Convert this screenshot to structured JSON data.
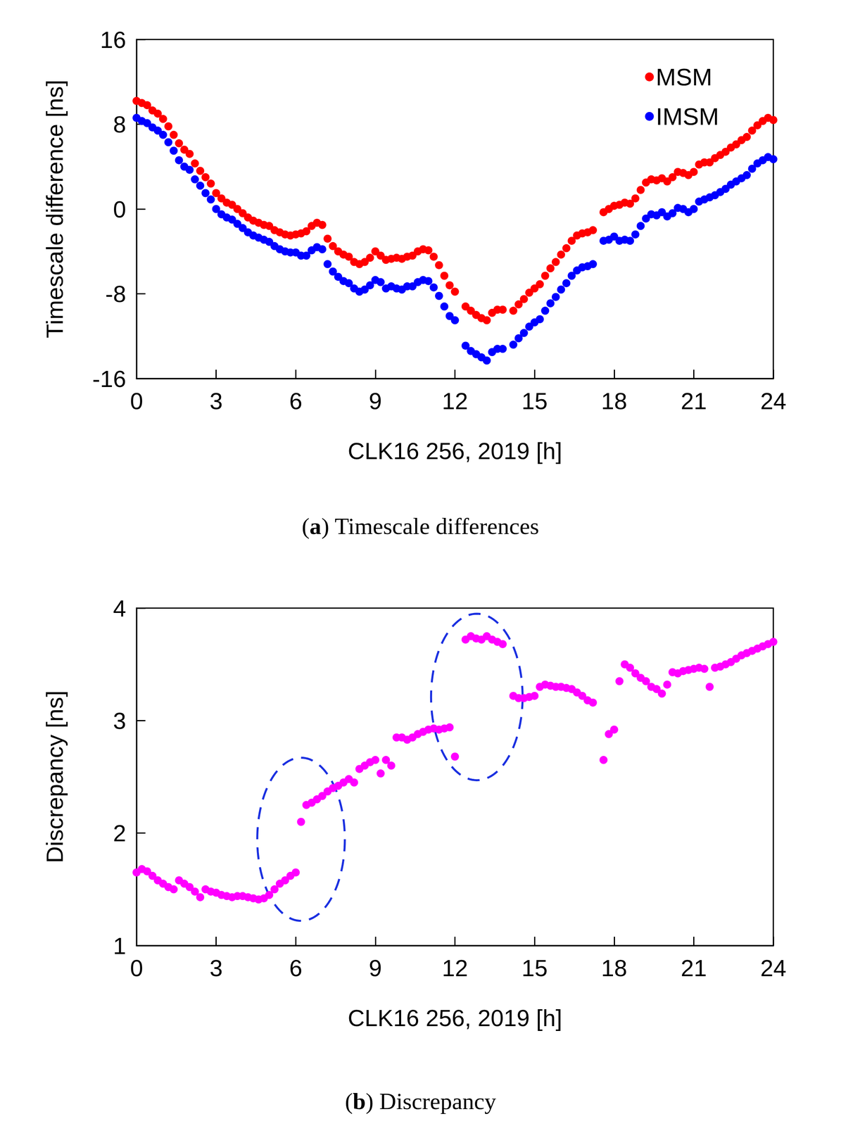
{
  "chart_data": [
    {
      "type": "scatter",
      "title": "(a) Timescale differences",
      "x_label": "CLK16 256, 2019 [h]",
      "y_label": "Timescale difference [ns]",
      "x": [
        0,
        0.2,
        0.4,
        0.6,
        0.8,
        1,
        1.2,
        1.4,
        1.6,
        1.8,
        2,
        2.2,
        2.4,
        2.6,
        2.8,
        3,
        3.2,
        3.4,
        3.6,
        3.8,
        4,
        4.2,
        4.4,
        4.6,
        4.8,
        5,
        5.2,
        5.4,
        5.6,
        5.8,
        6,
        6.2,
        6.4,
        6.6,
        6.8,
        7,
        7.2,
        7.4,
        7.6,
        7.8,
        8,
        8.2,
        8.4,
        8.6,
        8.8,
        9,
        9.2,
        9.4,
        9.6,
        9.8,
        10,
        10.2,
        10.4,
        10.6,
        10.8,
        11,
        11.2,
        11.4,
        11.6,
        11.8,
        12,
        12.4,
        12.6,
        12.8,
        13,
        13.2,
        13.4,
        13.6,
        13.8,
        14.2,
        14.4,
        14.6,
        14.8,
        15,
        15.2,
        15.4,
        15.6,
        15.8,
        16,
        16.2,
        16.4,
        16.6,
        16.8,
        17,
        17.2,
        17.6,
        17.8,
        18,
        18.2,
        18.4,
        18.6,
        18.8,
        19,
        19.2,
        19.4,
        19.6,
        19.8,
        20,
        20.2,
        20.4,
        20.6,
        20.8,
        21,
        21.2,
        21.4,
        21.6,
        21.8,
        22,
        22.2,
        22.4,
        22.6,
        22.8,
        23,
        23.2,
        23.4,
        23.6,
        23.8,
        24
      ],
      "series": [
        {
          "name": "MSM",
          "color": "#ff0000",
          "values": [
            10.2,
            10.0,
            9.8,
            9.3,
            9.0,
            8.5,
            7.8,
            7.0,
            6.2,
            5.6,
            5.2,
            4.3,
            3.6,
            3.0,
            2.4,
            1.5,
            1.0,
            0.6,
            0.4,
            0.0,
            -0.4,
            -0.8,
            -1.1,
            -1.3,
            -1.5,
            -1.6,
            -2.0,
            -2.2,
            -2.4,
            -2.5,
            -2.4,
            -2.3,
            -2.1,
            -1.6,
            -1.3,
            -1.5,
            -2.8,
            -3.5,
            -4.0,
            -4.3,
            -4.5,
            -5.0,
            -5.2,
            -5.0,
            -4.6,
            -4.0,
            -4.4,
            -4.8,
            -4.7,
            -4.6,
            -4.7,
            -4.5,
            -4.4,
            -4.0,
            -3.8,
            -3.9,
            -4.5,
            -5.3,
            -6.3,
            -7.2,
            -7.8,
            -9.2,
            -9.6,
            -10.0,
            -10.3,
            -10.5,
            -9.8,
            -9.5,
            -9.5,
            -9.6,
            -9.0,
            -8.5,
            -7.9,
            -7.5,
            -7.1,
            -6.3,
            -5.6,
            -5.0,
            -4.3,
            -3.7,
            -3.0,
            -2.5,
            -2.3,
            -2.2,
            -2.0,
            -0.3,
            0.0,
            0.3,
            0.4,
            0.6,
            0.5,
            1.0,
            1.8,
            2.5,
            2.8,
            2.7,
            2.9,
            2.6,
            3.0,
            3.5,
            3.4,
            3.2,
            3.5,
            4.2,
            4.4,
            4.4,
            4.8,
            5.1,
            5.4,
            5.8,
            6.1,
            6.5,
            6.8,
            7.4,
            7.9,
            8.3,
            8.6,
            8.4
          ]
        },
        {
          "name": "IMSM",
          "color": "#0000ff",
          "values": [
            8.6,
            8.3,
            8.1,
            7.7,
            7.4,
            7.0,
            6.3,
            5.5,
            4.6,
            4.0,
            3.7,
            2.8,
            2.2,
            1.5,
            0.9,
            0.0,
            -0.5,
            -0.8,
            -1.0,
            -1.4,
            -1.8,
            -2.2,
            -2.5,
            -2.7,
            -2.9,
            -3.1,
            -3.5,
            -3.8,
            -4.0,
            -4.1,
            -4.1,
            -4.4,
            -4.4,
            -3.9,
            -3.6,
            -3.8,
            -5.2,
            -5.9,
            -6.4,
            -6.8,
            -7.0,
            -7.5,
            -7.8,
            -7.6,
            -7.2,
            -6.7,
            -6.9,
            -7.5,
            -7.3,
            -7.5,
            -7.6,
            -7.3,
            -7.3,
            -6.9,
            -6.7,
            -6.8,
            -7.4,
            -8.2,
            -9.2,
            -10.1,
            -10.5,
            -12.9,
            -13.4,
            -13.7,
            -14.0,
            -14.3,
            -13.5,
            -13.2,
            -13.2,
            -12.8,
            -12.2,
            -11.7,
            -11.1,
            -10.7,
            -10.4,
            -9.6,
            -8.9,
            -8.3,
            -7.6,
            -7.0,
            -6.3,
            -5.8,
            -5.5,
            -5.4,
            -5.2,
            -3.0,
            -2.9,
            -2.6,
            -3.0,
            -2.9,
            -3.0,
            -2.4,
            -1.6,
            -0.9,
            -0.5,
            -0.6,
            -0.3,
            -0.7,
            -0.4,
            0.1,
            0.0,
            -0.3,
            0.0,
            0.7,
            0.9,
            1.1,
            1.3,
            1.6,
            1.9,
            2.3,
            2.6,
            2.9,
            3.2,
            3.8,
            4.3,
            4.6,
            4.9,
            4.7
          ]
        }
      ],
      "xlim": [
        0,
        24
      ],
      "xticks": [
        0,
        3,
        6,
        9,
        12,
        15,
        18,
        21,
        24
      ],
      "ylim": [
        -16,
        16
      ],
      "yticks": [
        -16,
        -8,
        0,
        8,
        16
      ],
      "legend": "upper right",
      "grid": false,
      "marker": "circle"
    },
    {
      "type": "scatter",
      "title": "(b) Discrepancy",
      "x_label": "CLK16 256, 2019 [h]",
      "y_label": "Discrepancy [ns]",
      "x": [
        0,
        0.2,
        0.4,
        0.6,
        0.8,
        1,
        1.2,
        1.4,
        1.6,
        1.8,
        2,
        2.2,
        2.4,
        2.6,
        2.8,
        3,
        3.2,
        3.4,
        3.6,
        3.8,
        4,
        4.2,
        4.4,
        4.6,
        4.8,
        5,
        5.2,
        5.4,
        5.6,
        5.8,
        6,
        6.2,
        6.4,
        6.6,
        6.8,
        7,
        7.2,
        7.4,
        7.6,
        7.8,
        8,
        8.2,
        8.4,
        8.6,
        8.8,
        9,
        9.2,
        9.4,
        9.6,
        9.8,
        10,
        10.2,
        10.4,
        10.6,
        10.8,
        11,
        11.2,
        11.4,
        11.6,
        11.8,
        12,
        12.4,
        12.6,
        12.8,
        13,
        13.2,
        13.4,
        13.6,
        13.8,
        14.2,
        14.4,
        14.6,
        14.8,
        15,
        15.2,
        15.4,
        15.6,
        15.8,
        16,
        16.2,
        16.4,
        16.6,
        16.8,
        17,
        17.2,
        17.6,
        17.8,
        18,
        18.2,
        18.4,
        18.6,
        18.8,
        19,
        19.2,
        19.4,
        19.6,
        19.8,
        20,
        20.2,
        20.4,
        20.6,
        20.8,
        21,
        21.2,
        21.4,
        21.6,
        21.8,
        22,
        22.2,
        22.4,
        22.6,
        22.8,
        23,
        23.2,
        23.4,
        23.6,
        23.8,
        24
      ],
      "values": [
        1.65,
        1.68,
        1.66,
        1.62,
        1.58,
        1.55,
        1.52,
        1.5,
        1.58,
        1.55,
        1.52,
        1.48,
        1.43,
        1.5,
        1.48,
        1.47,
        1.45,
        1.44,
        1.43,
        1.44,
        1.44,
        1.43,
        1.42,
        1.41,
        1.42,
        1.45,
        1.5,
        1.55,
        1.58,
        1.62,
        1.65,
        2.1,
        2.25,
        2.27,
        2.3,
        2.33,
        2.37,
        2.4,
        2.42,
        2.45,
        2.48,
        2.45,
        2.57,
        2.6,
        2.63,
        2.65,
        2.53,
        2.65,
        2.6,
        2.85,
        2.85,
        2.83,
        2.85,
        2.88,
        2.9,
        2.92,
        2.93,
        2.92,
        2.93,
        2.94,
        2.68,
        3.72,
        3.75,
        3.73,
        3.72,
        3.75,
        3.72,
        3.7,
        3.68,
        3.22,
        3.2,
        3.2,
        3.21,
        3.22,
        3.3,
        3.32,
        3.31,
        3.3,
        3.3,
        3.29,
        3.28,
        3.25,
        3.22,
        3.18,
        3.16,
        2.65,
        2.88,
        2.92,
        3.35,
        3.5,
        3.47,
        3.42,
        3.38,
        3.35,
        3.3,
        3.28,
        3.24,
        3.32,
        3.43,
        3.42,
        3.44,
        3.45,
        3.46,
        3.47,
        3.46,
        3.3,
        3.47,
        3.48,
        3.5,
        3.52,
        3.55,
        3.58,
        3.6,
        3.62,
        3.64,
        3.66,
        3.68,
        3.7
      ],
      "color": "#ff00ff",
      "annotations": [
        {
          "shape": "ellipse",
          "xlim": [
            4.55,
            7.85
          ],
          "ylim": [
            1.22,
            2.67
          ],
          "line_style": "dashed",
          "color": "#1a2fe0"
        },
        {
          "shape": "ellipse",
          "xlim": [
            11.1,
            14.55
          ],
          "ylim": [
            2.47,
            3.95
          ],
          "line_style": "dashed",
          "color": "#1a2fe0"
        }
      ],
      "xlim": [
        0,
        24
      ],
      "xticks": [
        0,
        3,
        6,
        9,
        12,
        15,
        18,
        21,
        24
      ],
      "ylim": [
        1,
        4
      ],
      "yticks": [
        1,
        2,
        3,
        4
      ],
      "grid": false,
      "marker": "circle"
    }
  ]
}
